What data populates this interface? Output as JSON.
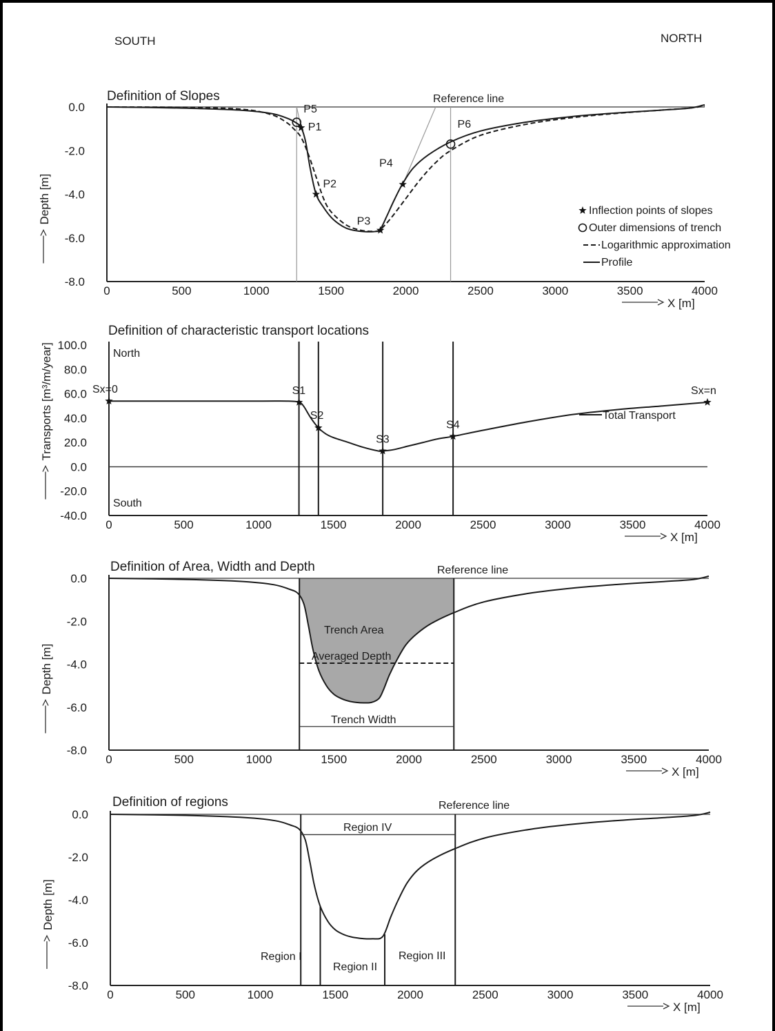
{
  "header": {
    "south": "SOUTH",
    "north": "NORTH"
  },
  "chart_data": [
    {
      "type": "line",
      "title": "Definition of Slopes",
      "xlabel": "X [m]",
      "ylabel": "Depth [m]",
      "xlim": [
        0,
        4000
      ],
      "ylim": [
        -8,
        0
      ],
      "xticks": [
        "0",
        "500",
        "1000",
        "1500",
        "2000",
        "2500",
        "3000",
        "3500",
        "4000"
      ],
      "yticks": [
        "0.0",
        "-2.0",
        "-4.0",
        "-6.0",
        "-8.0"
      ],
      "legend": {
        "placement": "right",
        "entries": [
          "Inflection points of slopes",
          "Outer dimensions of trench",
          "Logarithmic approximation",
          "Profile"
        ]
      },
      "annotations": [
        "Reference line"
      ],
      "series": [
        {
          "name": "Profile",
          "x": [
            0,
            500,
            900,
            1100,
            1200,
            1260,
            1300,
            1330,
            1360,
            1400,
            1450,
            1500,
            1550,
            1600,
            1650,
            1700,
            1750,
            1800,
            1830,
            1870,
            1920,
            1980,
            2050,
            2150,
            2300,
            2500,
            2800,
            3100,
            3400,
            3700,
            3900,
            4000
          ],
          "y": [
            0,
            -0.05,
            -0.15,
            -0.3,
            -0.5,
            -0.7,
            -0.95,
            -1.6,
            -2.8,
            -4.0,
            -4.6,
            -5.05,
            -5.35,
            -5.55,
            -5.65,
            -5.7,
            -5.72,
            -5.7,
            -5.6,
            -5.05,
            -4.3,
            -3.5,
            -2.8,
            -2.2,
            -1.6,
            -1.1,
            -0.7,
            -0.45,
            -0.28,
            -0.15,
            -0.05,
            0.1
          ]
        },
        {
          "name": "Logarithmic approximation",
          "x": [
            0,
            500,
            900,
            1100,
            1200,
            1250,
            1300,
            1350,
            1400,
            1450,
            1500,
            1600,
            1700,
            1800,
            1830,
            1900,
            2000,
            2100,
            2200,
            2300,
            2500,
            2800,
            3100,
            3400,
            3700,
            3900,
            4000
          ],
          "y": [
            0,
            -0.02,
            -0.1,
            -0.35,
            -0.7,
            -1.0,
            -1.4,
            -2.2,
            -3.2,
            -4.2,
            -4.8,
            -5.4,
            -5.65,
            -5.7,
            -5.62,
            -5.1,
            -4.2,
            -3.3,
            -2.55,
            -2.0,
            -1.3,
            -0.8,
            -0.5,
            -0.3,
            -0.15,
            -0.05,
            0.05
          ]
        }
      ],
      "points": [
        {
          "label": "P1",
          "marker": "star",
          "x": 1300,
          "y": -0.95
        },
        {
          "label": "P2",
          "marker": "star",
          "x": 1400,
          "y": -4.0
        },
        {
          "label": "P3",
          "marker": "star",
          "x": 1830,
          "y": -5.65
        },
        {
          "label": "P4",
          "marker": "star",
          "x": 1980,
          "y": -3.55
        },
        {
          "label": "P5",
          "marker": "circle",
          "x": 1270,
          "y": -0.7
        },
        {
          "label": "P6",
          "marker": "circle",
          "x": 2300,
          "y": -1.7
        }
      ]
    },
    {
      "type": "line",
      "title": "Definition of characteristic transport locations",
      "xlabel": "X [m]",
      "ylabel": "Transports [m³/m/year]",
      "xlim": [
        0,
        4000
      ],
      "ylim": [
        -40,
        100
      ],
      "xticks": [
        "0",
        "500",
        "1000",
        "1500",
        "2000",
        "2500",
        "3000",
        "3500",
        "4000"
      ],
      "yticks": [
        "100.0",
        "80.0",
        "60.0",
        "40.0",
        "20.0",
        "0.0",
        "-20.0",
        "-40.0"
      ],
      "annotations": [
        "North",
        "South"
      ],
      "legend": {
        "placement": "right",
        "entries": [
          "Total Transport"
        ]
      },
      "series": [
        {
          "name": "Total Transport",
          "x": [
            0,
            500,
            1000,
            1200,
            1270,
            1300,
            1350,
            1400,
            1450,
            1500,
            1600,
            1700,
            1800,
            1830,
            1900,
            2000,
            2100,
            2200,
            2300,
            2500,
            2800,
            3100,
            3400,
            3700,
            4000
          ],
          "y": [
            54,
            54,
            54,
            54,
            53,
            50,
            40,
            32,
            27,
            24,
            20,
            16,
            13,
            13,
            14,
            17,
            20,
            23,
            25,
            30,
            37,
            43,
            47,
            50,
            53
          ]
        }
      ],
      "points": [
        {
          "label": "Sx=0",
          "x": 0,
          "y": 54
        },
        {
          "label": "S1",
          "x": 1270,
          "y": 53
        },
        {
          "label": "S2",
          "x": 1400,
          "y": 32
        },
        {
          "label": "S3",
          "x": 1830,
          "y": 13
        },
        {
          "label": "S4",
          "x": 2300,
          "y": 25
        },
        {
          "label": "Sx=n",
          "x": 4000,
          "y": 53
        }
      ],
      "vlines": [
        1270,
        1400,
        1830,
        2300
      ],
      "hline": 0
    },
    {
      "type": "area",
      "title": "Definition of Area, Width and Depth",
      "xlabel": "X [m]",
      "ylabel": "Depth [m]",
      "xlim": [
        0,
        4000
      ],
      "ylim": [
        -8,
        0
      ],
      "xticks": [
        "0",
        "500",
        "1000",
        "1500",
        "2000",
        "2500",
        "3000",
        "3500",
        "4000"
      ],
      "yticks": [
        "0.0",
        "-2.0",
        "-4.0",
        "-6.0",
        "-8.0"
      ],
      "annotations": [
        "Reference line",
        "Trench Area",
        "Averaged Depth",
        "Trench Width"
      ],
      "averaged_depth": -3.95,
      "trench_width_level": -6.9,
      "trench_x": [
        1270,
        2300
      ],
      "series": [
        {
          "name": "Profile",
          "x": [
            0,
            500,
            900,
            1100,
            1200,
            1260,
            1300,
            1330,
            1360,
            1400,
            1450,
            1500,
            1550,
            1600,
            1650,
            1700,
            1750,
            1800,
            1830,
            1870,
            1920,
            1980,
            2050,
            2150,
            2300,
            2500,
            2800,
            3100,
            3400,
            3700,
            3900,
            4000
          ],
          "y": [
            0,
            -0.05,
            -0.15,
            -0.3,
            -0.5,
            -0.7,
            -1.2,
            -2.2,
            -3.3,
            -4.3,
            -5.0,
            -5.4,
            -5.6,
            -5.72,
            -5.78,
            -5.8,
            -5.78,
            -5.6,
            -5.2,
            -4.5,
            -3.8,
            -3.1,
            -2.6,
            -2.1,
            -1.6,
            -1.1,
            -0.7,
            -0.45,
            -0.28,
            -0.15,
            -0.05,
            0.1
          ]
        }
      ]
    },
    {
      "type": "line",
      "title": "Definition of regions",
      "xlabel": "X [m]",
      "ylabel": "Depth [m]",
      "xlim": [
        0,
        4000
      ],
      "ylim": [
        -8,
        0
      ],
      "xticks": [
        "0",
        "500",
        "1000",
        "1500",
        "2000",
        "2500",
        "3000",
        "3500",
        "4000"
      ],
      "yticks": [
        "0.0",
        "-2.0",
        "-4.0",
        "-6.0",
        "-8.0"
      ],
      "annotations": [
        "Reference line",
        "Region IV",
        "Region I",
        "Region II",
        "Region III"
      ],
      "region_iv_level": -0.95,
      "vlines": [
        1270,
        1400,
        1830,
        2300
      ],
      "series": [
        {
          "name": "Profile",
          "x": [
            0,
            500,
            900,
            1100,
            1200,
            1260,
            1300,
            1330,
            1360,
            1400,
            1450,
            1500,
            1550,
            1600,
            1650,
            1700,
            1750,
            1800,
            1830,
            1870,
            1920,
            1980,
            2050,
            2150,
            2300,
            2500,
            2800,
            3100,
            3400,
            3700,
            3900,
            4000
          ],
          "y": [
            0,
            -0.05,
            -0.15,
            -0.3,
            -0.5,
            -0.7,
            -1.2,
            -2.2,
            -3.3,
            -4.3,
            -5.0,
            -5.4,
            -5.6,
            -5.72,
            -5.78,
            -5.82,
            -5.82,
            -5.8,
            -5.55,
            -4.8,
            -4.0,
            -3.2,
            -2.6,
            -2.1,
            -1.6,
            -1.1,
            -0.7,
            -0.45,
            -0.28,
            -0.15,
            -0.05,
            0.1
          ]
        }
      ]
    }
  ]
}
